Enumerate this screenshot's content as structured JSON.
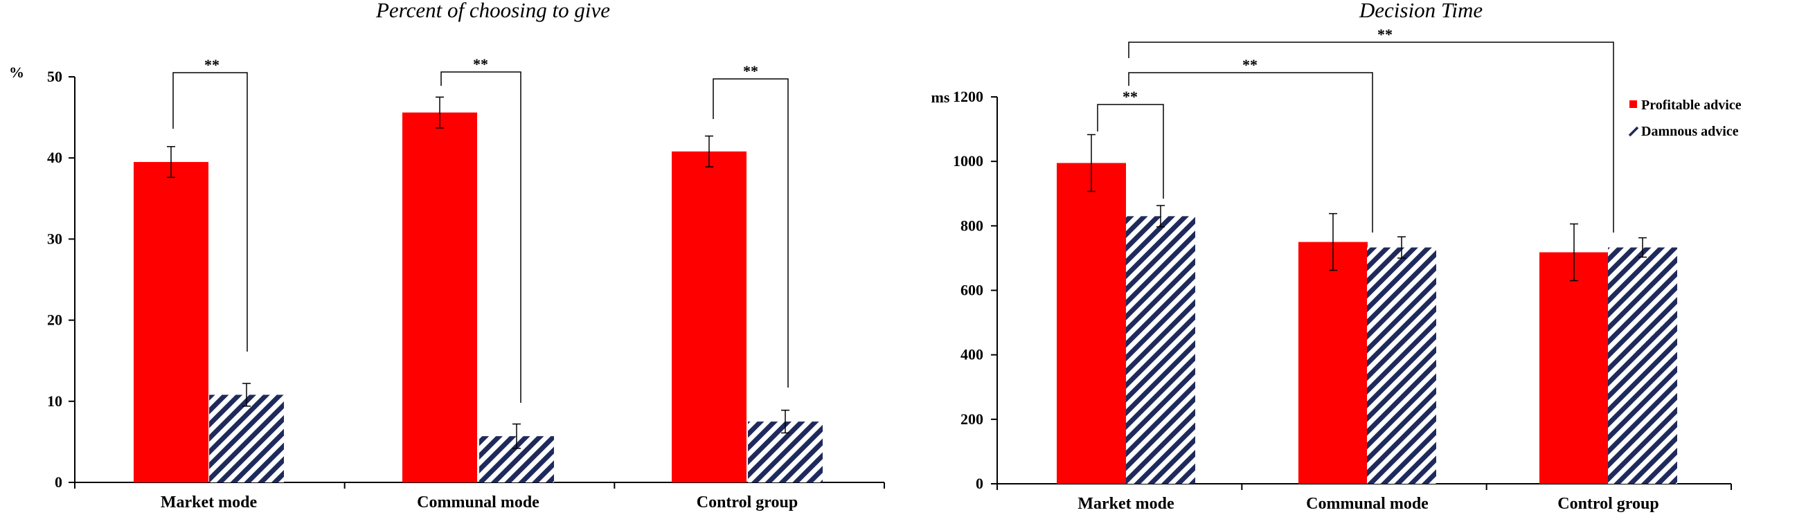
{
  "chart_data": [
    {
      "type": "bar",
      "title": "Percent of choosing to give",
      "ylabel": "%",
      "xlabel": "",
      "ylim": [
        0,
        50
      ],
      "yticks": [
        "0",
        "10",
        "20",
        "30",
        "40",
        "50"
      ],
      "categories": [
        "Market mode",
        "Communal mode",
        "Control group"
      ],
      "series": [
        {
          "name": "Profitable advice",
          "values": [
            39.5,
            45.6,
            40.8
          ],
          "errors": [
            1.9,
            1.9,
            1.9
          ],
          "color": "#ff0000",
          "pattern": "solid"
        },
        {
          "name": "Damnous advice",
          "values": [
            10.8,
            5.7,
            7.5
          ],
          "errors": [
            1.4,
            1.5,
            1.4
          ],
          "color": "#1f2a5c",
          "pattern": "diagonal-stripes"
        }
      ],
      "annotations": [
        {
          "label": "**",
          "compares": "Market mode: Profitable vs Damnous"
        },
        {
          "label": "**",
          "compares": "Communal mode: Profitable vs Damnous"
        },
        {
          "label": "**",
          "compares": "Control group: Profitable vs Damnous"
        }
      ],
      "grid": false,
      "legend": "none"
    },
    {
      "type": "bar",
      "title": "Decision Time",
      "ylabel": "ms",
      "xlabel": "",
      "ylim": [
        0,
        1200
      ],
      "yticks": [
        "0",
        "200",
        "400",
        "600",
        "800",
        "1000",
        "1200"
      ],
      "categories": [
        "Market mode",
        "Communal mode",
        "Control group"
      ],
      "series": [
        {
          "name": "Profitable advice",
          "values": [
            995,
            750,
            718
          ],
          "errors": [
            88,
            88,
            88
          ],
          "color": "#ff0000",
          "pattern": "solid"
        },
        {
          "name": "Damnous advice",
          "values": [
            830,
            733,
            733
          ],
          "errors": [
            33,
            33,
            30
          ],
          "color": "#1f2a5c",
          "pattern": "diagonal-stripes"
        }
      ],
      "annotations": [
        {
          "label": "**",
          "compares": "Market mode: Profitable vs Damnous"
        },
        {
          "label": "**",
          "compares": "Market mode Damnous vs Communal mode Profitable"
        },
        {
          "label": "**",
          "compares": "Market mode Damnous vs Control group Profitable"
        }
      ],
      "grid": false,
      "legend": "top-right"
    }
  ]
}
